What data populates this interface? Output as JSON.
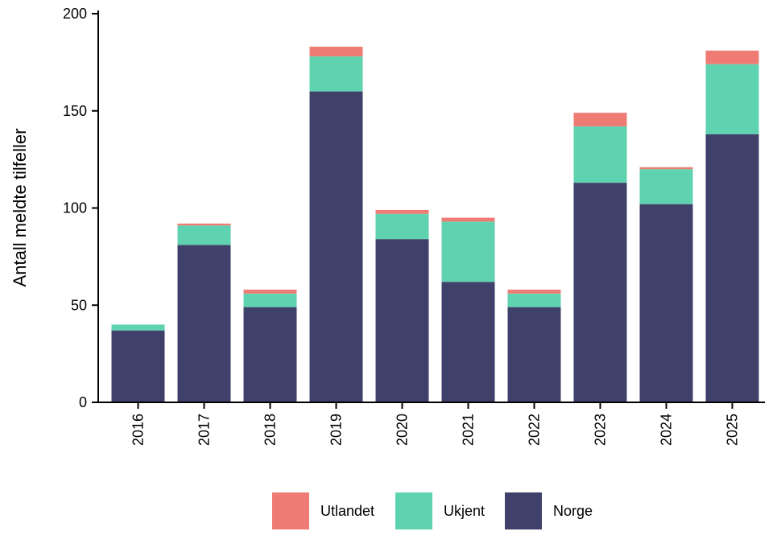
{
  "chart_data": {
    "type": "bar",
    "stacked": true,
    "ylabel": "Antall meldte tilfeller",
    "xlabel": "",
    "ylim": [
      0,
      200
    ],
    "yticks": [
      0,
      50,
      100,
      150,
      200
    ],
    "categories": [
      "2016",
      "2017",
      "2018",
      "2019",
      "2020",
      "2021",
      "2022",
      "2023",
      "2024",
      "2025"
    ],
    "series": [
      {
        "name": "Norge",
        "color": "#3f416b",
        "values": [
          37,
          81,
          49,
          160,
          84,
          62,
          49,
          113,
          102,
          138
        ]
      },
      {
        "name": "Ukjent",
        "color": "#5fd3b0",
        "values": [
          3,
          10,
          7,
          18,
          13,
          31,
          7,
          29,
          18,
          36
        ]
      },
      {
        "name": "Utlandet",
        "color": "#ee7c74",
        "values": [
          0,
          1,
          2,
          5,
          2,
          2,
          2,
          7,
          1,
          7
        ]
      }
    ],
    "legend": {
      "position": "bottom",
      "order": [
        "Utlandet",
        "Ukjent",
        "Norge"
      ]
    },
    "grid": false
  }
}
